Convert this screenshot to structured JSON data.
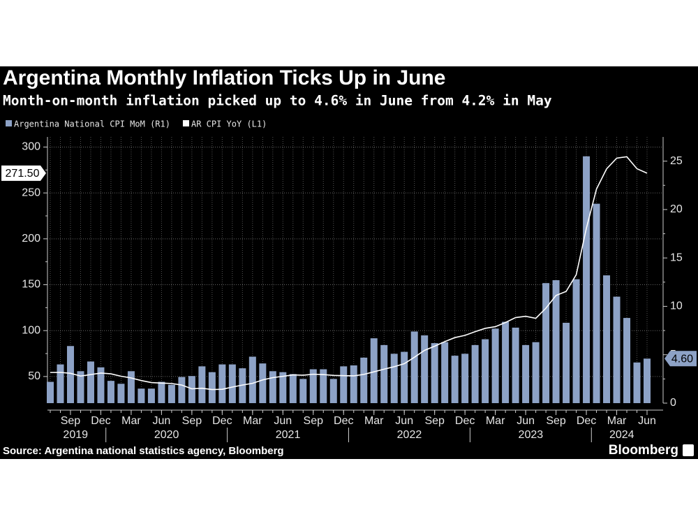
{
  "chart_data": {
    "type": "bar",
    "title": "Argentina Monthly Inflation Ticks Up in June",
    "subtitle": "Month-on-month inflation picked up to 4.6% in June from 4.2% in May",
    "source": "Source: Argentina national statistics agency, Bloomberg",
    "credit": "Bloomberg",
    "x": [
      "2019-07",
      "2019-08",
      "2019-09",
      "2019-10",
      "2019-11",
      "2019-12",
      "2020-01",
      "2020-02",
      "2020-03",
      "2020-04",
      "2020-05",
      "2020-06",
      "2020-07",
      "2020-08",
      "2020-09",
      "2020-10",
      "2020-11",
      "2020-12",
      "2021-01",
      "2021-02",
      "2021-03",
      "2021-04",
      "2021-05",
      "2021-06",
      "2021-07",
      "2021-08",
      "2021-09",
      "2021-10",
      "2021-11",
      "2021-12",
      "2022-01",
      "2022-02",
      "2022-03",
      "2022-04",
      "2022-05",
      "2022-06",
      "2022-07",
      "2022-08",
      "2022-09",
      "2022-10",
      "2022-11",
      "2022-12",
      "2023-01",
      "2023-02",
      "2023-03",
      "2023-04",
      "2023-05",
      "2023-06",
      "2023-07",
      "2023-08",
      "2023-09",
      "2023-10",
      "2023-11",
      "2023-12",
      "2024-01",
      "2024-02",
      "2024-03",
      "2024-04",
      "2024-05",
      "2024-06"
    ],
    "xticks": [
      {
        "value": "2019-09",
        "label": "Sep"
      },
      {
        "value": "2019-12",
        "label": "Dec"
      },
      {
        "value": "2020-03",
        "label": "Mar"
      },
      {
        "value": "2020-06",
        "label": "Jun"
      },
      {
        "value": "2020-09",
        "label": "Sep"
      },
      {
        "value": "2020-12",
        "label": "Dec"
      },
      {
        "value": "2021-03",
        "label": "Mar"
      },
      {
        "value": "2021-06",
        "label": "Jun"
      },
      {
        "value": "2021-09",
        "label": "Sep"
      },
      {
        "value": "2021-12",
        "label": "Dec"
      },
      {
        "value": "2022-03",
        "label": "Mar"
      },
      {
        "value": "2022-06",
        "label": "Jun"
      },
      {
        "value": "2022-09",
        "label": "Sep"
      },
      {
        "value": "2022-12",
        "label": "Dec"
      },
      {
        "value": "2023-03",
        "label": "Mar"
      },
      {
        "value": "2023-06",
        "label": "Jun"
      },
      {
        "value": "2023-09",
        "label": "Sep"
      },
      {
        "value": "2023-12",
        "label": "Dec"
      },
      {
        "value": "2024-03",
        "label": "Mar"
      },
      {
        "value": "2024-06",
        "label": "Jun"
      }
    ],
    "year_labels": [
      "2019",
      "2020",
      "2021",
      "2022",
      "2023",
      "2024"
    ],
    "ylim": [
      21,
      311
    ],
    "yticks": [
      50,
      100,
      150,
      200,
      250,
      300
    ],
    "y2lim": [
      0,
      27.5
    ],
    "y2ticks": [
      0,
      5,
      10,
      15,
      20,
      25
    ],
    "grid": true,
    "series": [
      {
        "name": "Argentina National CPI MoM (R1)",
        "type": "bar",
        "axis": "y2",
        "color": "#8da2c6",
        "values": [
          2.2,
          4.0,
          5.9,
          3.3,
          4.3,
          3.7,
          2.3,
          2.0,
          3.3,
          1.5,
          1.5,
          2.2,
          1.9,
          2.7,
          2.8,
          3.8,
          3.2,
          4.0,
          4.0,
          3.6,
          4.8,
          4.1,
          3.3,
          3.2,
          3.0,
          2.5,
          3.5,
          3.5,
          2.5,
          3.8,
          3.9,
          4.7,
          6.7,
          6.0,
          5.1,
          5.3,
          7.4,
          7.0,
          6.2,
          6.3,
          4.9,
          5.1,
          6.0,
          6.6,
          7.7,
          8.4,
          7.8,
          6.0,
          6.3,
          12.4,
          12.7,
          8.3,
          12.8,
          25.5,
          20.6,
          13.2,
          11.0,
          8.8,
          4.2,
          4.6
        ],
        "last_value_label": "4.60"
      },
      {
        "name": "AR CPI YoY (L1)",
        "type": "line",
        "color": "#ffffff",
        "values": [
          54.4,
          54.5,
          53.5,
          50.5,
          52.1,
          53.8,
          52.9,
          50.3,
          48.4,
          45.6,
          43.4,
          42.8,
          42.4,
          40.7,
          36.6,
          37.2,
          35.8,
          36.1,
          38.5,
          40.7,
          42.6,
          46.3,
          48.8,
          50.2,
          51.8,
          51.4,
          52.5,
          52.1,
          51.2,
          50.9,
          50.7,
          52.3,
          55.1,
          58.0,
          60.7,
          64.0,
          71.0,
          78.5,
          83.0,
          88.0,
          92.4,
          94.8,
          98.8,
          102.5,
          104.3,
          108.8,
          114.2,
          115.6,
          113.4,
          124.4,
          138.3,
          142.7,
          160.9,
          211.4,
          254.2,
          276.2,
          287.9,
          289.4,
          276.4,
          271.5
        ],
        "last_value_label": "271.50"
      }
    ]
  }
}
